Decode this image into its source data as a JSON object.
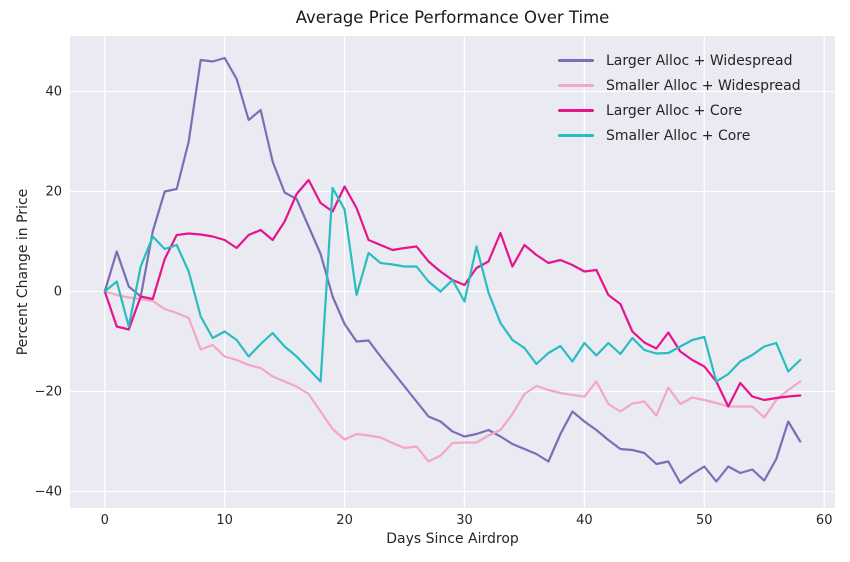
{
  "chart_data": {
    "type": "line",
    "title": "Average Price Performance Over Time",
    "xlabel": "Days Since Airdrop",
    "ylabel": "Percent Change in Price",
    "xlim": [
      -2.9,
      60.9
    ],
    "ylim": [
      -43.3,
      51.1
    ],
    "grid": true,
    "grid_color": "#ffffff",
    "background": "#eaeaf2",
    "legend_position": "upper right",
    "xticks": {
      "values": [
        0,
        10,
        20,
        30,
        40,
        50,
        60
      ],
      "labels": [
        "0",
        "10",
        "20",
        "30",
        "40",
        "50",
        "60"
      ]
    },
    "yticks": {
      "values": [
        40,
        20,
        0,
        -20,
        -40
      ],
      "labels": [
        "40",
        "20",
        "0",
        "−20",
        "−40"
      ]
    },
    "x": [
      0,
      1,
      2,
      3,
      4,
      5,
      6,
      7,
      8,
      9,
      10,
      11,
      12,
      13,
      14,
      15,
      16,
      17,
      18,
      19,
      20,
      21,
      22,
      23,
      24,
      25,
      26,
      27,
      28,
      29,
      30,
      31,
      32,
      33,
      34,
      35,
      36,
      37,
      38,
      39,
      40,
      41,
      42,
      43,
      44,
      45,
      46,
      47,
      48,
      49,
      50,
      51,
      52,
      53,
      54,
      55,
      56,
      57,
      58
    ],
    "series": [
      {
        "name": "Larger Alloc + Widespread",
        "color": "#7b6eb7",
        "values": [
          0,
          8,
          1,
          -1,
          12,
          20,
          20.5,
          30,
          46.3,
          46,
          46.7,
          42.5,
          34.3,
          36.3,
          26,
          19.8,
          18.5,
          13,
          7.5,
          -1,
          -6.5,
          -10,
          -9.8,
          -13,
          -16,
          -19,
          -22,
          -25,
          -26,
          -28,
          -29,
          -28.5,
          -27.7,
          -29,
          -30.5,
          -31.5,
          -32.5,
          -34,
          -28.5,
          -24,
          -26,
          -27.7,
          -29.7,
          -31.5,
          -31.7,
          -32.3,
          -34.5,
          -34,
          -38.3,
          -36.5,
          -35,
          -38,
          -35,
          -36.3,
          -35.6,
          -37.8,
          -33.5,
          -26,
          -30
        ]
      },
      {
        "name": "Smaller Alloc + Widespread",
        "color": "#f4a6c6",
        "values": [
          0,
          -0.7,
          -1.2,
          -1.5,
          -1.9,
          -3.5,
          -4.3,
          -5.3,
          -11.6,
          -10.7,
          -13,
          -13.7,
          -14.7,
          -15.3,
          -17,
          -18,
          -19,
          -20.5,
          -24,
          -27.5,
          -29.6,
          -28.5,
          -28.8,
          -29.2,
          -30.3,
          -31.3,
          -31,
          -34,
          -32.8,
          -30.3,
          -30.2,
          -30.2,
          -28.8,
          -27.7,
          -24.5,
          -20.5,
          -18.9,
          -19.7,
          -20.3,
          -20.7,
          -21,
          -18,
          -22.5,
          -24,
          -22.4,
          -22,
          -24.8,
          -19.2,
          -22.5,
          -21.2,
          -21.7,
          -22.3,
          -23,
          -23,
          -23,
          -25.2,
          -21.7,
          -19.7,
          -18
        ]
      },
      {
        "name": "Larger Alloc + Core",
        "color": "#e7148c",
        "values": [
          0,
          -7,
          -7.6,
          -1,
          -1.5,
          6.5,
          11.3,
          11.6,
          11.4,
          11,
          10.3,
          8.7,
          11.3,
          12.3,
          10.3,
          14,
          19.5,
          22.3,
          17.7,
          16,
          21,
          16.7,
          10.3,
          9.3,
          8.3,
          8.7,
          9,
          6,
          4,
          2.3,
          1.3,
          4.7,
          6,
          11.7,
          5,
          9.3,
          7.3,
          5.7,
          6.3,
          5.3,
          4,
          4.3,
          -0.7,
          -2.5,
          -8,
          -10.2,
          -11.4,
          -8.2,
          -12,
          -13.7,
          -15,
          -18,
          -23,
          -18.3,
          -21,
          -21.7,
          -21.3,
          -21,
          -20.8
        ]
      },
      {
        "name": "Smaller Alloc + Core",
        "color": "#28bdbf",
        "values": [
          0,
          2,
          -7,
          5,
          11,
          8.5,
          9.3,
          4,
          -5,
          -9.3,
          -8,
          -9.7,
          -13,
          -10.5,
          -8.3,
          -11,
          -13,
          -15.5,
          -18,
          20.7,
          16.4,
          -0.7,
          7.7,
          5.7,
          5.4,
          5,
          5,
          2,
          0,
          2.3,
          -2,
          9,
          -0.2,
          -6.3,
          -9.7,
          -11.3,
          -14.5,
          -12.3,
          -10.9,
          -14,
          -10.3,
          -12.8,
          -10.3,
          -12.5,
          -9.3,
          -11.7,
          -12.4,
          -12.3,
          -11,
          -9.7,
          -9.1,
          -18,
          -16.5,
          -14,
          -12.7,
          -11,
          -10.3,
          -16,
          -13.7
        ]
      }
    ]
  }
}
